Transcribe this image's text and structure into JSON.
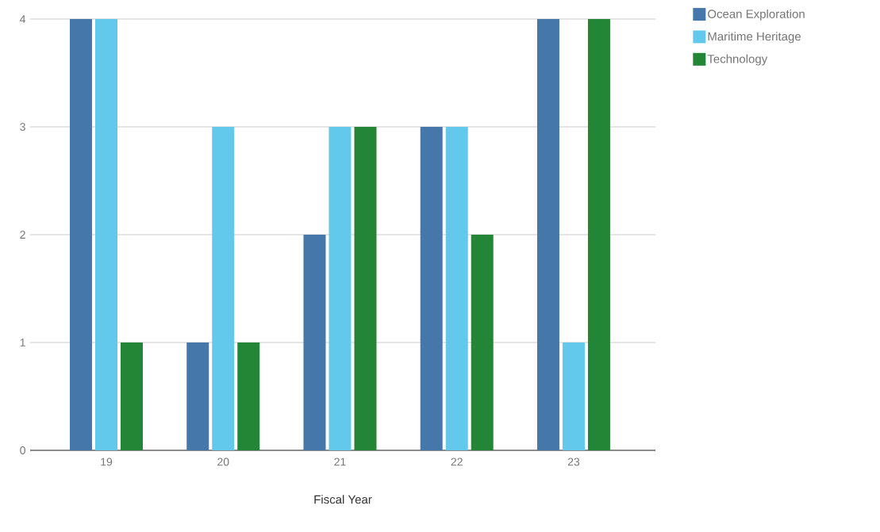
{
  "chart_data": {
    "type": "bar",
    "xlabel": "Fiscal Year",
    "categories": [
      "19",
      "20",
      "21",
      "22",
      "23"
    ],
    "series": [
      {
        "name": "Ocean Exploration",
        "color": "#4577aa",
        "values": [
          4,
          1,
          2,
          3,
          4
        ]
      },
      {
        "name": "Maritime Heritage",
        "color": "#63c9ec",
        "values": [
          4,
          3,
          3,
          3,
          1
        ]
      },
      {
        "name": "Technology",
        "color": "#238636",
        "values": [
          1,
          1,
          3,
          2,
          4
        ]
      }
    ],
    "ylim": [
      0,
      4
    ],
    "yticks": [
      0,
      1,
      2,
      3,
      4
    ],
    "grid": "y",
    "legend": "top right"
  }
}
